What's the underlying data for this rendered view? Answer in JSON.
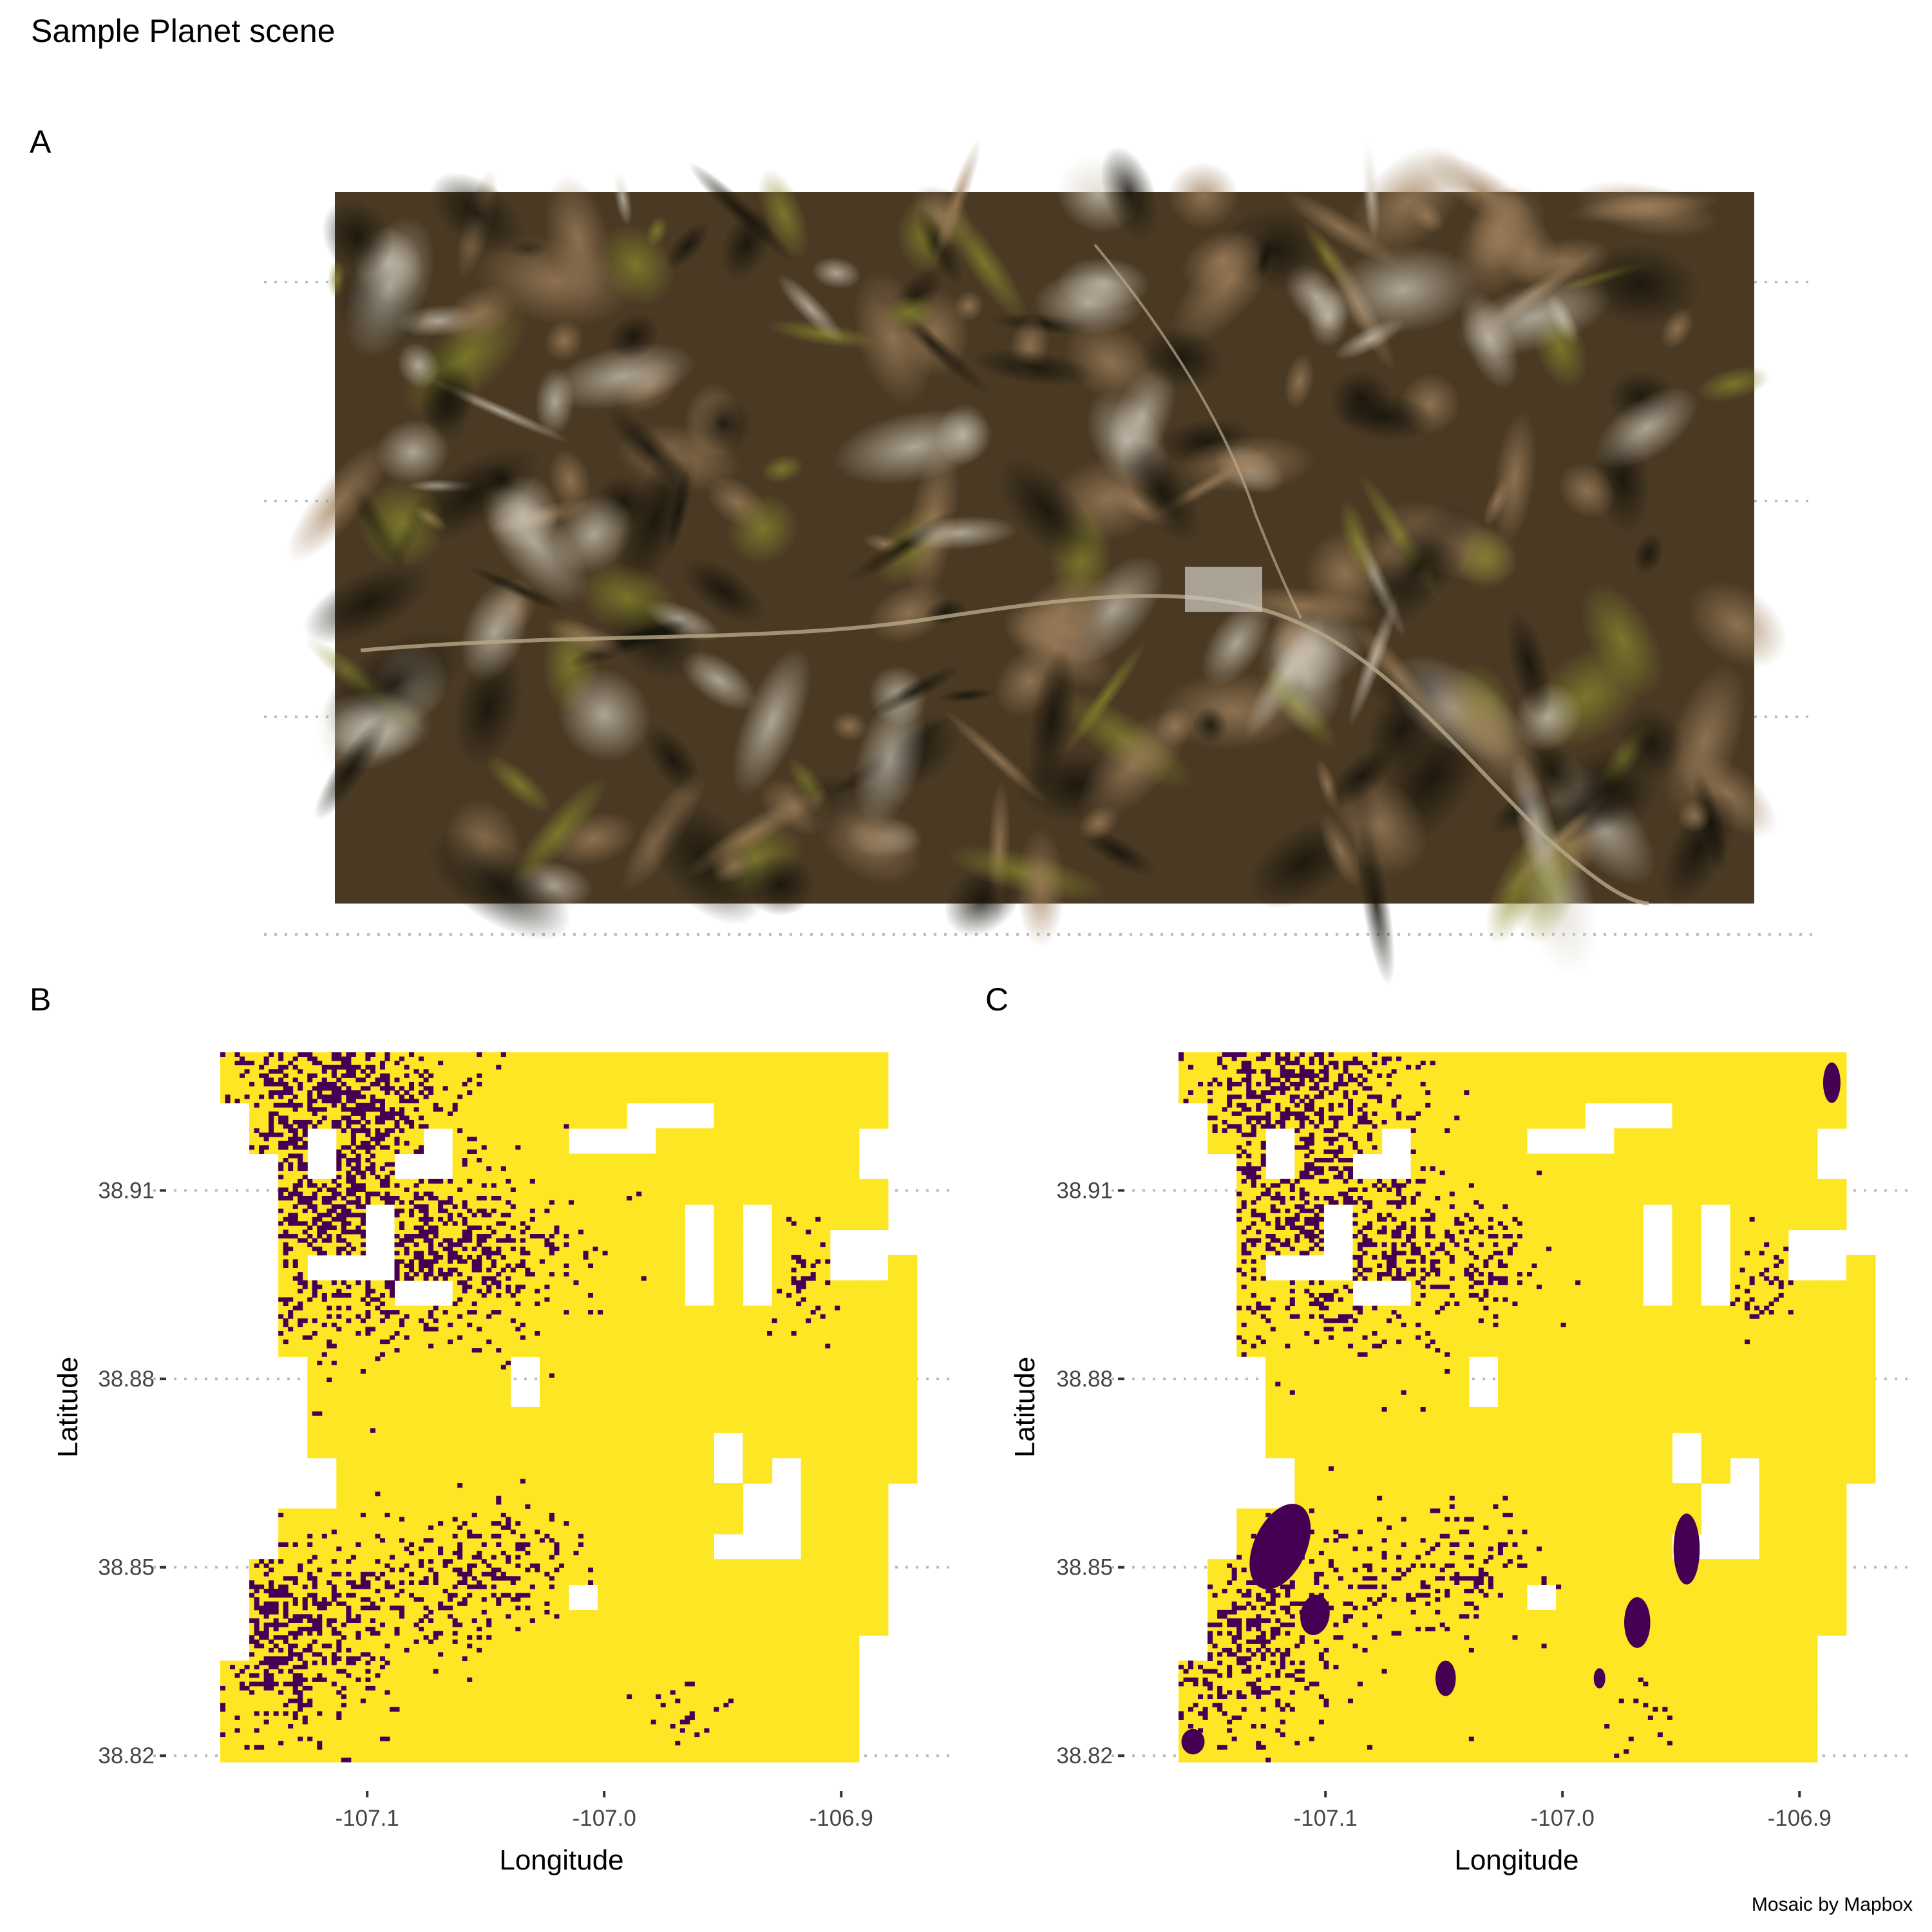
{
  "title": "Sample Planet scene",
  "caption": "Mosaic by Mapbox",
  "panels": {
    "a": {
      "tag": "A",
      "content": "true-color satellite scene"
    },
    "b": {
      "tag": "B"
    },
    "c": {
      "tag": "C"
    }
  },
  "axes": {
    "xlabel": "Longitude",
    "ylabel": "Latitude",
    "x_ticks": [
      {
        "value": -107.1,
        "label": "-107.1"
      },
      {
        "value": -107.0,
        "label": "-107.0"
      },
      {
        "value": -106.9,
        "label": "-106.9"
      }
    ],
    "y_ticks": [
      {
        "value": 38.91,
        "label": "38.91"
      },
      {
        "value": 38.88,
        "label": "38.88"
      },
      {
        "value": 38.85,
        "label": "38.85"
      },
      {
        "value": 38.82,
        "label": "38.82"
      }
    ],
    "x_range": [
      -107.162,
      -106.868
    ],
    "y_range": [
      38.819,
      38.932
    ]
  },
  "colors": {
    "class_high": "#fde725",
    "class_low": "#440154",
    "no_data": "#ffffff",
    "grid": "#bbbbbb"
  }
}
